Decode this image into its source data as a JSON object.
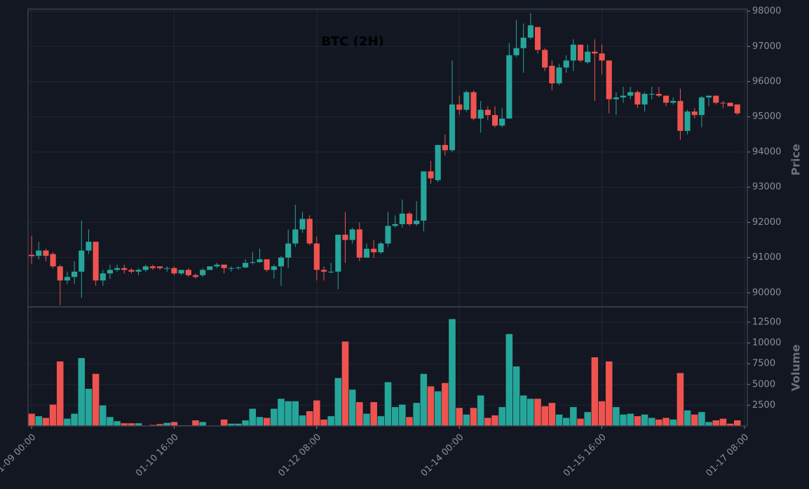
{
  "chart_data": {
    "type": "candlestick",
    "title": "BTC (2H)",
    "y_label": "Price",
    "volume_label": "Volume",
    "up_color": "#26a69a",
    "down_color": "#ef5350",
    "grid": true,
    "x": [
      0,
      2,
      4,
      6,
      8,
      10,
      12,
      14,
      16,
      18,
      20,
      22,
      24,
      26,
      28,
      30,
      32,
      34,
      36,
      38,
      40,
      42,
      44,
      46,
      48,
      50,
      52,
      54,
      56,
      58,
      60,
      62,
      64,
      66,
      68,
      70,
      72,
      74,
      76,
      78,
      80,
      82,
      84,
      86,
      88,
      90,
      92,
      94,
      96,
      98,
      100,
      102,
      104,
      106,
      108,
      110,
      112,
      114,
      116,
      118,
      120,
      122,
      124,
      126,
      128,
      130,
      132,
      134,
      136,
      138,
      140,
      142,
      144,
      146,
      148,
      150,
      152,
      154,
      156,
      158,
      160,
      162,
      164,
      166,
      168,
      170,
      172,
      174,
      176,
      178,
      180,
      182,
      184,
      186,
      188,
      190,
      192,
      194,
      196,
      198
    ],
    "open": [
      91080,
      91050,
      91200,
      91100,
      90750,
      90350,
      90450,
      90600,
      91200,
      91450,
      90350,
      90550,
      90650,
      90700,
      90650,
      90600,
      90650,
      90750,
      90750,
      90680,
      90700,
      90550,
      90650,
      90500,
      90500,
      90650,
      90750,
      90800,
      90700,
      90700,
      90720,
      90850,
      90870,
      90950,
      90650,
      90750,
      91000,
      91400,
      91800,
      92100,
      91400,
      90650,
      90600,
      90600,
      91650,
      91500,
      91800,
      91000,
      91250,
      91150,
      91400,
      91900,
      91950,
      92250,
      91950,
      92050,
      93450,
      93200,
      94200,
      94050,
      95350,
      95200,
      95700,
      94950,
      95200,
      95050,
      94750,
      94950,
      96750,
      96950,
      97250,
      97550,
      96900,
      96450,
      95950,
      96400,
      96600,
      97050,
      96550,
      96850,
      96800,
      96600,
      95500,
      95550,
      95600,
      95700,
      95350,
      95650,
      95650,
      95600,
      95400,
      95450,
      94600,
      95150,
      95050,
      95550,
      95600,
      95400,
      95400,
      95350
    ],
    "high": [
      91620,
      91450,
      91250,
      91150,
      90800,
      90600,
      90900,
      92050,
      91800,
      91450,
      90650,
      90800,
      90800,
      90800,
      90700,
      90700,
      90800,
      90800,
      90750,
      90750,
      90750,
      90650,
      90700,
      90550,
      90700,
      90750,
      90850,
      90800,
      90750,
      90750,
      90950,
      91150,
      91250,
      90950,
      90800,
      91050,
      91800,
      92500,
      92300,
      92200,
      91600,
      90750,
      90850,
      91650,
      92300,
      91850,
      92000,
      91400,
      91500,
      91450,
      92300,
      92200,
      92650,
      92300,
      92600,
      93450,
      93750,
      94200,
      94500,
      96600,
      95600,
      95750,
      95750,
      95450,
      95300,
      95300,
      95250,
      97100,
      97750,
      97650,
      97950,
      97550,
      96950,
      96600,
      96500,
      96750,
      97200,
      97050,
      97050,
      97200,
      97050,
      96600,
      95700,
      95850,
      95850,
      95750,
      95700,
      95850,
      95850,
      95600,
      95550,
      95800,
      95200,
      95250,
      95600,
      95600,
      95600,
      95450,
      95400,
      95350
    ],
    "low": [
      90820,
      90950,
      90900,
      90700,
      89650,
      90250,
      90250,
      89850,
      91100,
      90200,
      90200,
      90400,
      90600,
      90550,
      90550,
      90500,
      90600,
      90650,
      90650,
      90600,
      90500,
      90500,
      90450,
      90400,
      90450,
      90650,
      90700,
      90550,
      90600,
      90650,
      90700,
      90800,
      90850,
      90600,
      90400,
      90200,
      90700,
      91300,
      91700,
      91350,
      90350,
      90350,
      90550,
      90100,
      90850,
      91400,
      90900,
      91000,
      91000,
      91100,
      91300,
      91850,
      91850,
      91900,
      91900,
      91750,
      93100,
      93150,
      93900,
      94000,
      95050,
      95150,
      94900,
      94550,
      94900,
      94700,
      94700,
      94950,
      96700,
      96250,
      97200,
      96800,
      96300,
      95750,
      95900,
      96250,
      96300,
      96550,
      96500,
      95450,
      96200,
      95100,
      95050,
      95400,
      95500,
      95250,
      95150,
      95500,
      95550,
      95300,
      95350,
      94350,
      94500,
      94950,
      94700,
      95300,
      95350,
      95250,
      95300,
      95050
    ],
    "close": [
      91040,
      91200,
      91050,
      90750,
      90350,
      90450,
      90600,
      91200,
      91450,
      90350,
      90550,
      90650,
      90700,
      90650,
      90600,
      90650,
      90750,
      90700,
      90700,
      90700,
      90550,
      90650,
      90500,
      90450,
      90650,
      90750,
      90800,
      90700,
      90700,
      90720,
      90850,
      90870,
      90950,
      90650,
      90750,
      91000,
      91400,
      91800,
      92100,
      91400,
      90650,
      90600,
      90600,
      91650,
      91500,
      91800,
      91000,
      91250,
      91150,
      91400,
      91900,
      91950,
      92250,
      91950,
      92050,
      93450,
      93250,
      94200,
      94050,
      95350,
      95200,
      95700,
      94950,
      95200,
      95050,
      94750,
      94950,
      96750,
      96950,
      97250,
      97600,
      96900,
      96400,
      95950,
      96400,
      96600,
      97050,
      96600,
      96850,
      96800,
      96600,
      95500,
      95550,
      95600,
      95700,
      95350,
      95650,
      95650,
      95600,
      95400,
      95450,
      94600,
      95150,
      95050,
      95550,
      95600,
      95400,
      95380,
      95300,
      95100
    ],
    "volume": [
      1500,
      1200,
      1000,
      2600,
      7800,
      900,
      1500,
      8200,
      4500,
      6300,
      2500,
      1100,
      600,
      350,
      350,
      350,
      50,
      150,
      250,
      400,
      500,
      100,
      100,
      700,
      500,
      50,
      50,
      800,
      300,
      300,
      700,
      2100,
      1100,
      1000,
      2100,
      3300,
      3000,
      3000,
      1300,
      1800,
      3100,
      800,
      1200,
      5800,
      10200,
      4400,
      2900,
      1500,
      2900,
      1200,
      5300,
      2300,
      2600,
      1100,
      2800,
      6300,
      4800,
      4200,
      5200,
      12900,
      2200,
      1400,
      2200,
      3700,
      1000,
      1300,
      2300,
      11100,
      7200,
      3700,
      3300,
      3300,
      2400,
      2800,
      1400,
      1000,
      2300,
      900,
      1700,
      8300,
      3000,
      7800,
      2300,
      1400,
      1500,
      1200,
      1400,
      1000,
      800,
      1000,
      800,
      6400,
      1900,
      1400,
      1700,
      500,
      700,
      900,
      300,
      700
    ],
    "xlim": [
      -1,
      200.8
    ],
    "xticks": [
      {
        "value": 0,
        "label": "01-09 00:00"
      },
      {
        "value": 40,
        "label": "01-10 16:00"
      },
      {
        "value": 80,
        "label": "01-12 08:00"
      },
      {
        "value": 120,
        "label": "01-14 00:00"
      },
      {
        "value": 160,
        "label": "01-15 16:00"
      },
      {
        "value": 200,
        "label": "01-17 08:00"
      }
    ],
    "ylim": [
      89600,
      98060
    ],
    "yticks": [
      90000,
      91000,
      92000,
      93000,
      94000,
      95000,
      96000,
      97000,
      98000
    ],
    "volume_ylim": [
      0,
      14350
    ],
    "volume_yticks": [
      {
        "value": 2500,
        "label": "2500"
      },
      {
        "value": 5000,
        "label": "5000"
      },
      {
        "value": 7500,
        "label": "7500"
      },
      {
        "value": 10000,
        "label": "10000"
      },
      {
        "value": 12500,
        "label": "12500"
      }
    ]
  }
}
